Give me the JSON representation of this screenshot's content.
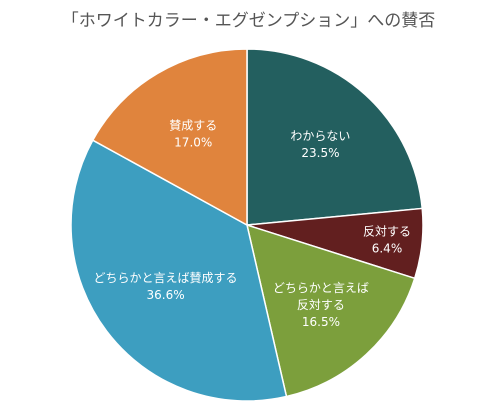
{
  "chart_data": {
    "type": "pie",
    "title": "「ホワイトカラー・エグゼンプション」への賛否",
    "slices": [
      {
        "label": [
          "わからない"
        ],
        "value": 23.5,
        "value_label": "23.5%",
        "color": "#235f5f"
      },
      {
        "label": [
          "反対する"
        ],
        "value": 6.4,
        "value_label": "6.4%",
        "color": "#621f1f"
      },
      {
        "label": [
          "どちらかと言えば",
          "反対する"
        ],
        "value": 16.5,
        "value_label": "16.5%",
        "color": "#7c9f3c"
      },
      {
        "label": [
          "どちらかと言えば賛成する"
        ],
        "value": 36.6,
        "value_label": "36.6%",
        "color": "#3d9ec0"
      },
      {
        "label": [
          "賛成する"
        ],
        "value": 17.0,
        "value_label": "17.0%",
        "color": "#e0843d"
      }
    ],
    "start_angle_deg": 0,
    "direction": "clockwise",
    "legend": "none"
  }
}
